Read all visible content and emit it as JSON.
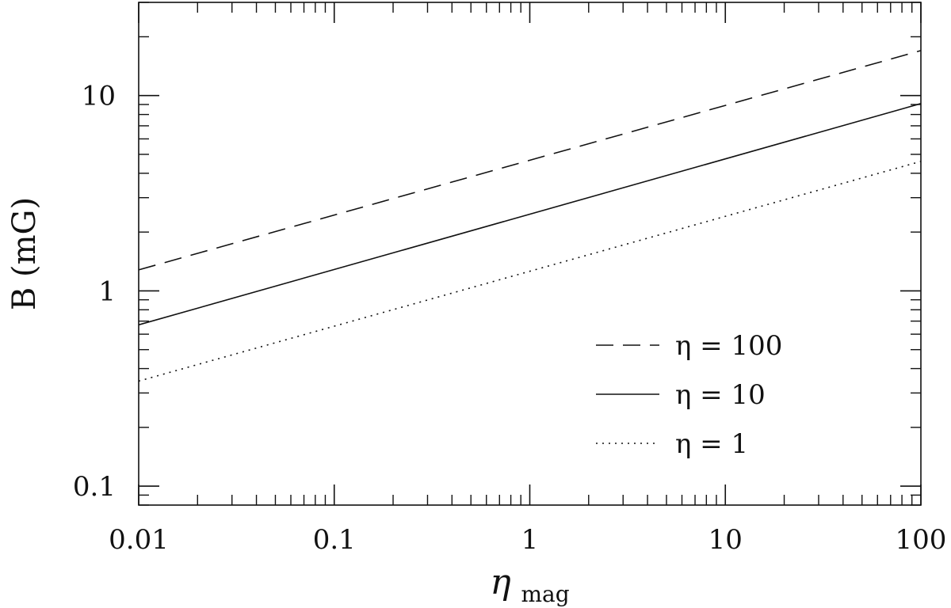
{
  "chart_data": {
    "type": "line",
    "xlabel": {
      "base": "η",
      "sub": "mag"
    },
    "ylabel": "B  (mG)",
    "xscale": "log",
    "yscale": "log",
    "xlim": [
      0.01,
      100
    ],
    "ylim": [
      0.08,
      30
    ],
    "x_ticks": [
      {
        "value": 0.01,
        "label": "0.01"
      },
      {
        "value": 0.1,
        "label": "0.1"
      },
      {
        "value": 1,
        "label": "1"
      },
      {
        "value": 10,
        "label": "10"
      },
      {
        "value": 100,
        "label": "100"
      }
    ],
    "y_ticks": [
      {
        "value": 0.1,
        "label": "0.1"
      },
      {
        "value": 1,
        "label": "1"
      },
      {
        "value": 10,
        "label": "10"
      }
    ],
    "grid": false,
    "legend_position": "lower-right",
    "series": [
      {
        "name": "η  =  100",
        "style": "dashed",
        "x": [
          0.01,
          100
        ],
        "y": [
          1.28,
          17.0
        ]
      },
      {
        "name": "η  =  10",
        "style": "solid",
        "x": [
          0.01,
          100
        ],
        "y": [
          0.67,
          9.1
        ]
      },
      {
        "name": "η  =  1",
        "style": "dotted",
        "x": [
          0.01,
          100
        ],
        "y": [
          0.345,
          4.6
        ]
      }
    ]
  }
}
